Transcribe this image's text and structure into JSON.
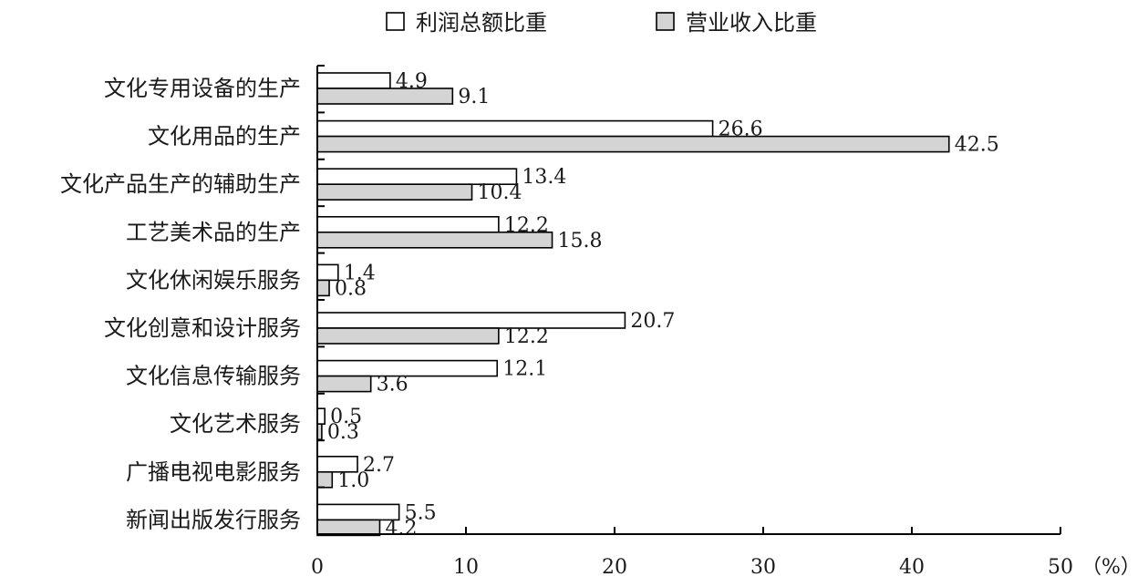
{
  "chart_data": {
    "type": "bar",
    "orientation": "horizontal",
    "categories": [
      "文化专用设备的生产",
      "文化用品的生产",
      "文化产品生产的辅助生产",
      "工艺美术品的生产",
      "文化休闲娱乐服务",
      "文化创意和设计服务",
      "文化信息传输服务",
      "文化艺术服务",
      "广播电视电影服务",
      "新闻出版发行服务"
    ],
    "series": [
      {
        "name": "利润总额比重",
        "color": "#ffffff",
        "values": [
          4.9,
          26.6,
          13.4,
          12.2,
          1.4,
          20.7,
          12.1,
          0.5,
          2.7,
          5.5
        ],
        "labels": [
          "4.9",
          "26.6",
          "13.4",
          "12.2",
          "1.4",
          "20.7",
          "12.1",
          "0.5",
          "2.7",
          "5.5"
        ]
      },
      {
        "name": "营业收入比重",
        "color": "#d4d4d4",
        "values": [
          9.1,
          42.5,
          10.4,
          15.8,
          0.8,
          12.2,
          3.6,
          0.3,
          1.0,
          4.2
        ],
        "labels": [
          "9.1",
          "42.5",
          "10.4",
          "15.8",
          "0.8",
          "12.2",
          "3.6",
          "0.3",
          "1.0",
          "4.2"
        ]
      }
    ],
    "xlim": [
      0,
      50
    ],
    "xticks": [
      "0",
      "10",
      "20",
      "30",
      "40",
      "50"
    ],
    "xunit": "（%）",
    "legend_position": "top-center",
    "grid": false
  }
}
